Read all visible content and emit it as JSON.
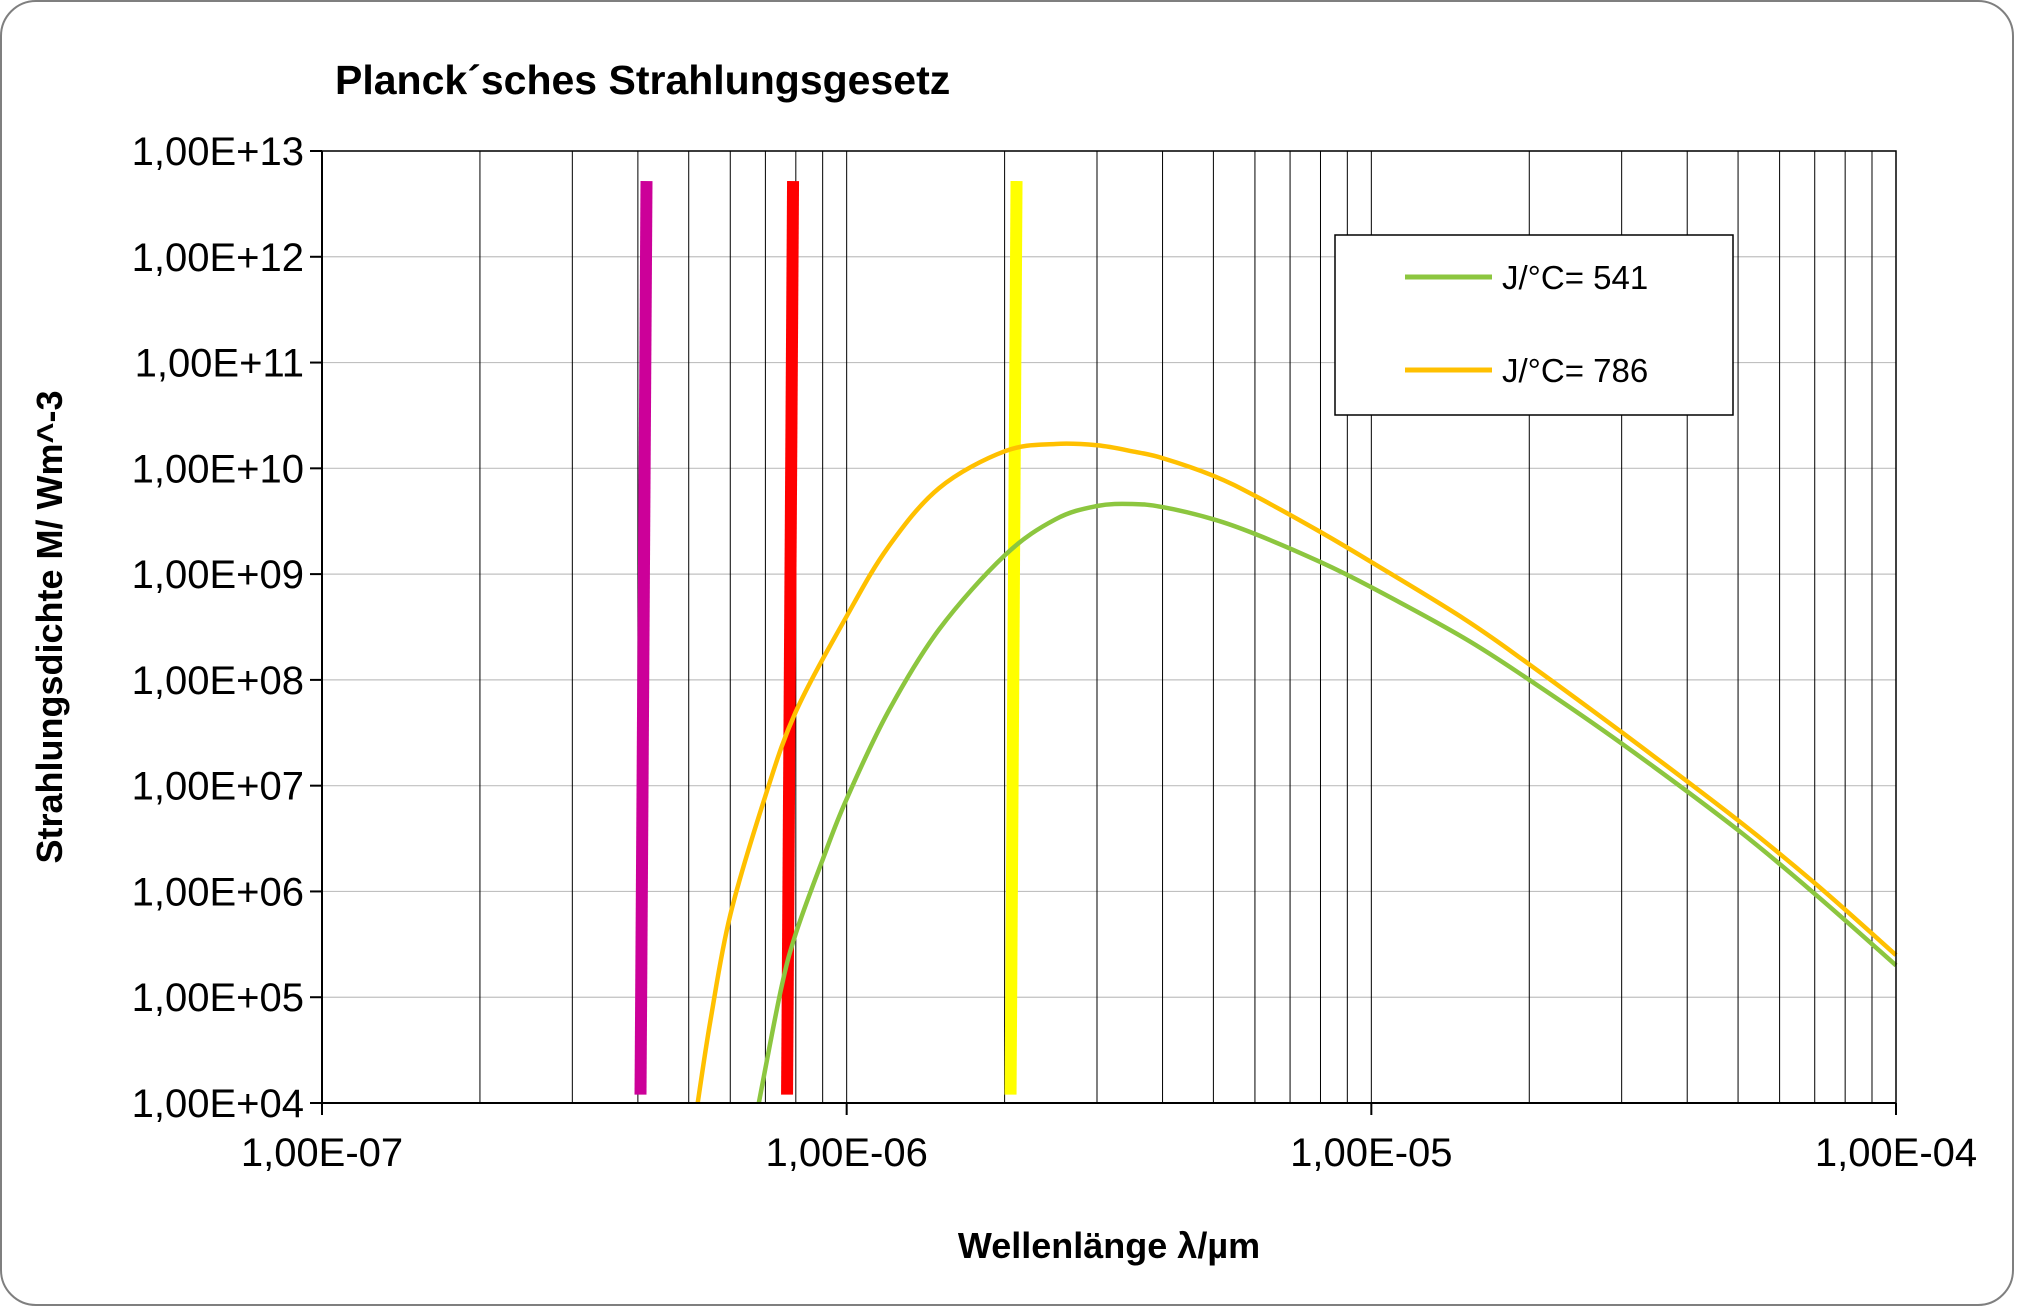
{
  "chart_data": {
    "type": "line",
    "title": "Planck´sches Strahlungsgesetz",
    "xlabel": "Wellenlänge λ/µm",
    "ylabel": "Strahlungsdichte M/ Wm^-3",
    "x_scale": "log",
    "y_scale": "log",
    "xlim": [
      1e-07,
      0.0001
    ],
    "ylim": [
      10000.0,
      10000000000000.0
    ],
    "grid": {
      "x_major": true,
      "x_minor": true,
      "y_major": true
    },
    "legend_position": "top-right",
    "x_tick_labels": [
      "1,00E-07",
      "1,00E-06",
      "1,00E-05",
      "1,00E-04"
    ],
    "y_tick_labels": [
      "1,00E+13",
      "1,00E+12",
      "1,00E+11",
      "1,00E+10",
      "1,00E+09",
      "1,00E+08",
      "1,00E+07",
      "1,00E+06",
      "1,00E+05",
      "1,00E+04"
    ],
    "series": [
      {
        "name": "J/°C= 541",
        "color": "#8cc63f",
        "x": [
          6.8e-07,
          7.5e-07,
          8e-07,
          9e-07,
          1e-06,
          1.2e-06,
          1.5e-06,
          2e-06,
          2.5e-06,
          3e-06,
          3.5e-06,
          4e-06,
          5e-06,
          6e-06,
          8e-06,
          1e-05,
          1.5e-05,
          2e-05,
          3e-05,
          5e-05,
          7e-05,
          0.0001
        ],
        "y": [
          10000.0,
          120000.0,
          400000.0,
          2000000.0,
          7500000.0,
          50000000.0,
          300000000.0,
          1500000000.0,
          3300000000.0,
          4400000000.0,
          4600000000.0,
          4300000000.0,
          3300000000.0,
          2400000000.0,
          1300000000.0,
          750000000.0,
          250000000.0,
          100000000.0,
          25000000.0,
          3800000.0,
          950000.0,
          200000.0
        ]
      },
      {
        "name": "J/°C= 786",
        "color": "#ffc000",
        "x": [
          5.2e-07,
          5.5e-07,
          6e-07,
          7e-07,
          8e-07,
          1e-06,
          1.2e-06,
          1.5e-06,
          2e-06,
          2.5e-06,
          3e-06,
          3.5e-06,
          4e-06,
          5e-06,
          6e-06,
          8e-06,
          1e-05,
          1.5e-05,
          2e-05,
          3e-05,
          5e-05,
          7e-05,
          0.0001
        ],
        "y": [
          10000.0,
          60000.0,
          600000.0,
          8000000.0,
          50000000.0,
          400000000.0,
          1800000000.0,
          6500000000.0,
          14500000000.0,
          17000000000.0,
          16500000000.0,
          14500000000.0,
          12500000000.0,
          8500000000.0,
          5500000000.0,
          2500000000.0,
          1300000000.0,
          380000000.0,
          140000000.0,
          32000000.0,
          4700000.0,
          1200000.0,
          250000.0
        ]
      }
    ],
    "vertical_lines": [
      {
        "x": 4.1e-07,
        "color": "#cc0099",
        "y_from": 12000.0,
        "y_to": 5200000000000.0
      },
      {
        "x": 7.8e-07,
        "color": "#ff0000",
        "y_from": 12000.0,
        "y_to": 5200000000000.0
      },
      {
        "x": 2.08e-06,
        "color": "#ffff00",
        "y_from": 12000.0,
        "y_to": 5200000000000.0
      }
    ]
  }
}
